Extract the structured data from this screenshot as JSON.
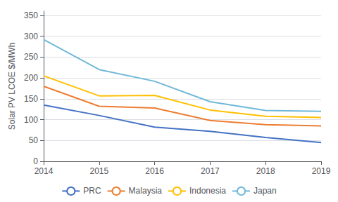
{
  "chart_data": {
    "type": "line",
    "x": [
      2014,
      2015,
      2016,
      2017,
      2018,
      2019
    ],
    "xlim": [
      2014,
      2019
    ],
    "xticks": [
      2014,
      2015,
      2016,
      2017,
      2018,
      2019
    ],
    "ylabel": "Solar PV LCOE $/MWh",
    "ylim": [
      0,
      360
    ],
    "yticks": [
      0,
      50,
      100,
      150,
      200,
      250,
      300,
      350
    ],
    "grid": true,
    "legend": "bottom",
    "series": [
      {
        "name": "PRC",
        "color": "#4472c4",
        "values": [
          135,
          110,
          82,
          72,
          57,
          45
        ]
      },
      {
        "name": "Malaysia",
        "color": "#ed7d31",
        "values": [
          180,
          132,
          128,
          98,
          88,
          85
        ]
      },
      {
        "name": "Indonesia",
        "color": "#ffc000",
        "values": [
          205,
          157,
          158,
          123,
          108,
          105
        ]
      },
      {
        "name": "Japan",
        "color": "#70b8d8",
        "values": [
          292,
          220,
          192,
          143,
          122,
          120
        ]
      }
    ]
  }
}
